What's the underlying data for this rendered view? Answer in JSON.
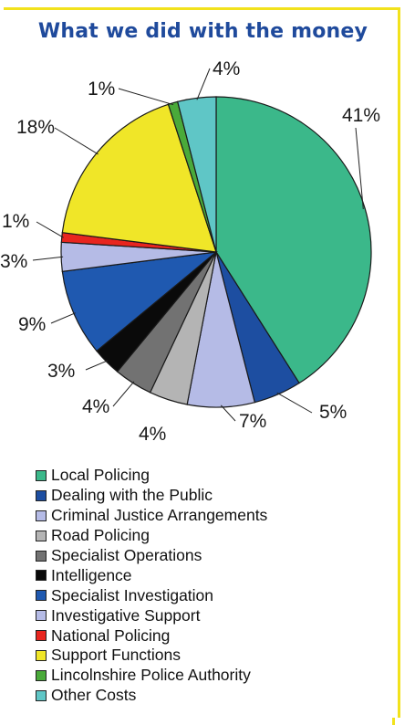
{
  "title": "What we did with the money",
  "chart_data": {
    "type": "pie",
    "title": "What we did with the money",
    "legend_position": "bottom",
    "slices": [
      {
        "label": "Local Policing",
        "value": 41,
        "display": "41%",
        "color": "#3bb88a"
      },
      {
        "label": "Dealing with the Public",
        "value": 5,
        "display": "5%",
        "color": "#1d4ea1"
      },
      {
        "label": "Criminal Justice Arrangements",
        "value": 7,
        "display": "7%",
        "color": "#b5bbe6"
      },
      {
        "label": "Road Policing",
        "value": 4,
        "display": "4%",
        "color": "#b4b4b4"
      },
      {
        "label": "Specialist Operations",
        "value": 4,
        "display": "4%",
        "color": "#727272"
      },
      {
        "label": "Intelligence",
        "value": 3,
        "display": "3%",
        "color": "#0a0a0a"
      },
      {
        "label": "Specialist Investigation",
        "value": 9,
        "display": "9%",
        "color": "#1f59b0"
      },
      {
        "label": "Investigative Support",
        "value": 3,
        "display": "3%",
        "color": "#b5bbe6"
      },
      {
        "label": "National Policing",
        "value": 1,
        "display": "1%",
        "color": "#e8261f"
      },
      {
        "label": "Support Functions",
        "value": 18,
        "display": "18%",
        "color": "#f0e628"
      },
      {
        "label": "Lincolnshire Police Authority",
        "value": 1,
        "display": "1%",
        "color": "#4aaa3a"
      },
      {
        "label": "Other Costs",
        "value": 4,
        "display": "4%",
        "color": "#5fc6c6"
      }
    ]
  }
}
